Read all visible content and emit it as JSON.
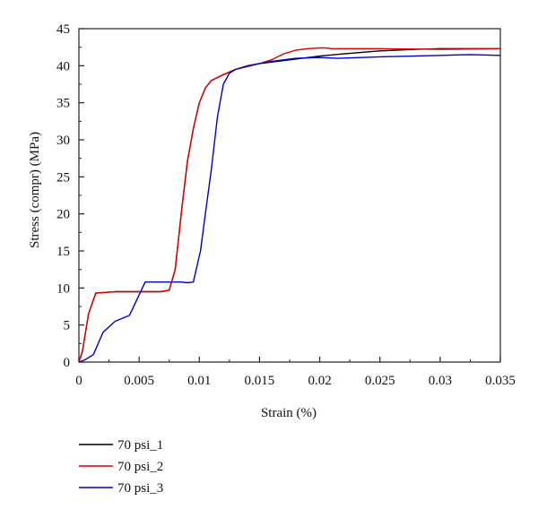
{
  "chart_data": {
    "type": "line",
    "title": "",
    "xlabel": "Strain (%)",
    "ylabel": "Stress (compr) (MPa)",
    "xlim": [
      0,
      0.035
    ],
    "ylim": [
      0,
      45
    ],
    "x_ticks": [
      0,
      0.005,
      0.01,
      0.015,
      0.02,
      0.025,
      0.03,
      0.035
    ],
    "x_tick_labels": [
      "0",
      "0.005",
      "0.01",
      "0.015",
      "0.02",
      "0.025",
      "0.03",
      "0.035"
    ],
    "y_ticks": [
      0,
      5,
      10,
      15,
      20,
      25,
      30,
      35,
      40,
      45
    ],
    "y_tick_labels": [
      "0",
      "5",
      "10",
      "15",
      "20",
      "25",
      "30",
      "35",
      "40",
      "45"
    ],
    "grid": false,
    "legend_position": "bottom-left, below plot",
    "series": [
      {
        "name": "70 psi_1",
        "color": "#000000",
        "points": [
          [
            0,
            0
          ],
          [
            0.0003,
            1.5
          ],
          [
            0.0008,
            6.5
          ],
          [
            0.0014,
            9.3
          ],
          [
            0.003,
            9.5
          ],
          [
            0.005,
            9.5
          ],
          [
            0.0068,
            9.5
          ],
          [
            0.0075,
            9.7
          ],
          [
            0.008,
            12.5
          ],
          [
            0.0085,
            20
          ],
          [
            0.009,
            27
          ],
          [
            0.0095,
            31.5
          ],
          [
            0.01,
            35
          ],
          [
            0.0105,
            37
          ],
          [
            0.011,
            38
          ],
          [
            0.012,
            38.8
          ],
          [
            0.013,
            39.5
          ],
          [
            0.014,
            40
          ],
          [
            0.015,
            40.3
          ],
          [
            0.0165,
            40.6
          ],
          [
            0.018,
            40.9
          ],
          [
            0.02,
            41.3
          ],
          [
            0.022,
            41.6
          ],
          [
            0.025,
            42
          ],
          [
            0.028,
            42.2
          ],
          [
            0.03,
            42.3
          ],
          [
            0.035,
            42.3
          ]
        ]
      },
      {
        "name": "70 psi_2",
        "color": "#dd0000",
        "points": [
          [
            0,
            0
          ],
          [
            0.0003,
            1.5
          ],
          [
            0.0008,
            6.5
          ],
          [
            0.0014,
            9.3
          ],
          [
            0.003,
            9.5
          ],
          [
            0.005,
            9.5
          ],
          [
            0.0068,
            9.5
          ],
          [
            0.0075,
            9.7
          ],
          [
            0.008,
            12.5
          ],
          [
            0.0085,
            20
          ],
          [
            0.009,
            27
          ],
          [
            0.0095,
            31.5
          ],
          [
            0.01,
            35
          ],
          [
            0.0105,
            37
          ],
          [
            0.011,
            38
          ],
          [
            0.012,
            38.8
          ],
          [
            0.013,
            39.5
          ],
          [
            0.014,
            40
          ],
          [
            0.015,
            40.3
          ],
          [
            0.016,
            40.8
          ],
          [
            0.017,
            41.6
          ],
          [
            0.018,
            42.1
          ],
          [
            0.019,
            42.3
          ],
          [
            0.02,
            42.4
          ],
          [
            0.0205,
            42.4
          ],
          [
            0.021,
            42.3
          ],
          [
            0.025,
            42.3
          ],
          [
            0.03,
            42.2
          ],
          [
            0.035,
            42.3
          ]
        ]
      },
      {
        "name": "70 psi_3",
        "color": "#0000cc",
        "points": [
          [
            0,
            0
          ],
          [
            0.0005,
            0.3
          ],
          [
            0.0012,
            1
          ],
          [
            0.002,
            4
          ],
          [
            0.003,
            5.5
          ],
          [
            0.0042,
            6.3
          ],
          [
            0.0055,
            10.8
          ],
          [
            0.007,
            10.8
          ],
          [
            0.0085,
            10.8
          ],
          [
            0.009,
            10.7
          ],
          [
            0.0095,
            10.8
          ],
          [
            0.0101,
            15
          ],
          [
            0.0105,
            20
          ],
          [
            0.011,
            26
          ],
          [
            0.0115,
            33
          ],
          [
            0.012,
            37.5
          ],
          [
            0.0125,
            39
          ],
          [
            0.013,
            39.5
          ],
          [
            0.014,
            39.9
          ],
          [
            0.015,
            40.3
          ],
          [
            0.016,
            40.6
          ],
          [
            0.018,
            41
          ],
          [
            0.02,
            41.1
          ],
          [
            0.0215,
            41
          ],
          [
            0.025,
            41.2
          ],
          [
            0.03,
            41.4
          ],
          [
            0.0325,
            41.5
          ],
          [
            0.035,
            41.4
          ]
        ]
      }
    ]
  }
}
